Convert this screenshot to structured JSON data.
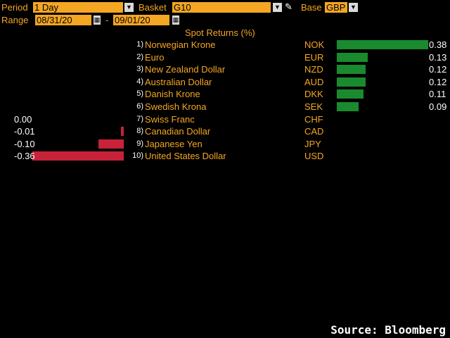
{
  "header": {
    "period_label": "Period",
    "period_value": "1 Day",
    "basket_label": "Basket",
    "basket_value": "G10",
    "base_label": "Base",
    "base_value": "GBP",
    "range_label": "Range",
    "range_start": "08/31/20",
    "range_sep": "-",
    "range_end": "09/01/20"
  },
  "title": "Spot Returns (%)",
  "source": "Source: Bloomberg",
  "colors": {
    "accent": "#f5a623",
    "positive": "#1a8a2e",
    "negative": "#c8213a"
  },
  "icons": {
    "dropdown": "chevron-down-icon",
    "calendar": "calendar-icon",
    "edit": "pencil-icon"
  },
  "chart_data": {
    "type": "bar",
    "title": "Spot Returns (%)",
    "categories": [
      "Norwegian Krone",
      "Euro",
      "New Zealand Dollar",
      "Australian Dollar",
      "Danish Krone",
      "Swedish Krona",
      "Swiss Franc",
      "Canadian Dollar",
      "Japanese Yen",
      "United States Dollar"
    ],
    "rows": [
      {
        "rank": "1)",
        "name": "Norwegian Krone",
        "code": "NOK",
        "value": 0.38,
        "label": "0.38"
      },
      {
        "rank": "2)",
        "name": "Euro",
        "code": "EUR",
        "value": 0.13,
        "label": "0.13"
      },
      {
        "rank": "3)",
        "name": "New Zealand Dollar",
        "code": "NZD",
        "value": 0.12,
        "label": "0.12"
      },
      {
        "rank": "4)",
        "name": "Australian Dollar",
        "code": "AUD",
        "value": 0.12,
        "label": "0.12"
      },
      {
        "rank": "5)",
        "name": "Danish Krone",
        "code": "DKK",
        "value": 0.11,
        "label": "0.11"
      },
      {
        "rank": "6)",
        "name": "Swedish Krona",
        "code": "SEK",
        "value": 0.09,
        "label": "0.09"
      },
      {
        "rank": "7)",
        "name": "Swiss Franc",
        "code": "CHF",
        "value": 0.0,
        "label": "0.00"
      },
      {
        "rank": "8)",
        "name": "Canadian Dollar",
        "code": "CAD",
        "value": -0.01,
        "label": "-0.01"
      },
      {
        "rank": "9)",
        "name": "Japanese Yen",
        "code": "JPY",
        "value": -0.1,
        "label": "-0.10"
      },
      {
        "rank": "10)",
        "name": "United States Dollar",
        "code": "USD",
        "value": -0.36,
        "label": "-0.36"
      }
    ]
  }
}
